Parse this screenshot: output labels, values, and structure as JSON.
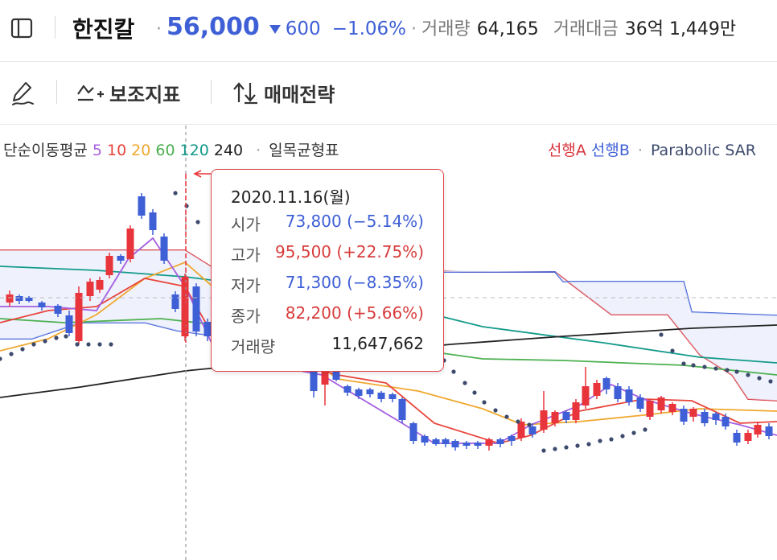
{
  "header": {
    "panel_icon": "sidebar-panel-icon",
    "stock_name": "한진칼",
    "sep": "·",
    "price": "56,000",
    "change": "600",
    "change_pct": "−1.06%",
    "volume_label": "거래량",
    "volume_value": "64,165",
    "amount_label": "거래대금",
    "amount_value": "36억 1,449만"
  },
  "toolbar": {
    "draw_icon": "pen-draw-icon",
    "indicators_label": "보조지표",
    "strategy_label": "매매전략"
  },
  "legend": {
    "sma_label": "단순이동평균",
    "ma": [
      {
        "label": "5",
        "color": "#a55fe0"
      },
      {
        "label": "10",
        "color": "#e8453c"
      },
      {
        "label": "20",
        "color": "#f0a830"
      },
      {
        "label": "60",
        "color": "#4cb050"
      },
      {
        "label": "120",
        "color": "#139a8a"
      },
      {
        "label": "240",
        "color": "#222222"
      }
    ],
    "ichimoku_label": "일목균형표",
    "span_a_label": "선행A",
    "span_b_label": "선행B",
    "sar_label": "Parabolic SAR",
    "colors": {
      "up": "#e8353c",
      "down": "#3e5fd6",
      "span_a": "#d9353c",
      "span_b": "#3e5fd6",
      "sar": "#3c4a6c"
    }
  },
  "tooltip": {
    "date": "2020.11.16(월)",
    "open_label": "시가",
    "open_value": "73,800 (−5.14%)",
    "high_label": "고가",
    "high_value": "95,500 (+22.75%)",
    "low_label": "저가",
    "low_value": "71,300 (−8.35%)",
    "close_label": "종가",
    "close_value": "82,200 (+5.66%)",
    "volume_label": "거래량",
    "volume_value": "11,647,662"
  }
}
